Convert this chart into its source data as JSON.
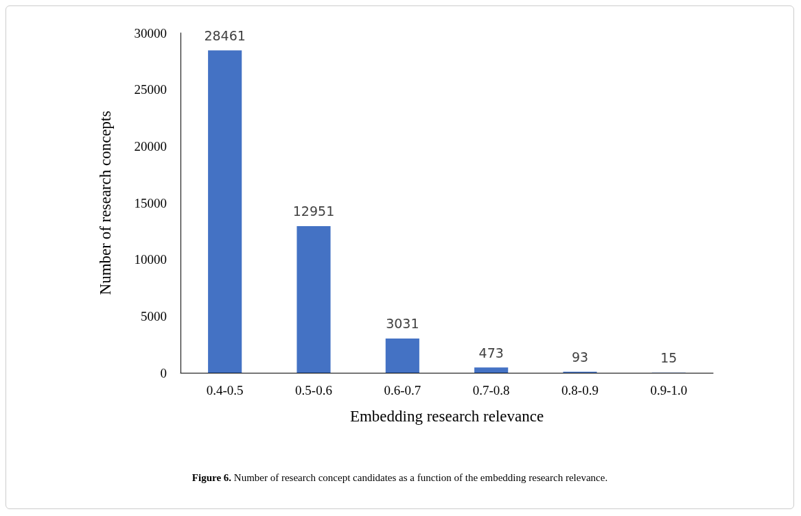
{
  "chart_data": {
    "type": "bar",
    "categories": [
      "0.4-0.5",
      "0.5-0.6",
      "0.6-0.7",
      "0.7-0.8",
      "0.8-0.9",
      "0.9-1.0"
    ],
    "values": [
      28461,
      12951,
      3031,
      473,
      93,
      15
    ],
    "color": "#4472c4",
    "xlabel": "Embedding research relevance",
    "ylabel": "Number of research concepts",
    "ylim": [
      0,
      30000
    ],
    "yticks": [
      0,
      5000,
      10000,
      15000,
      20000,
      25000,
      30000
    ],
    "grid": false,
    "data_labels": true,
    "annotations": [
      "Figure 6. Number of research concept candidates as a function of the embedding research relevance."
    ]
  }
}
